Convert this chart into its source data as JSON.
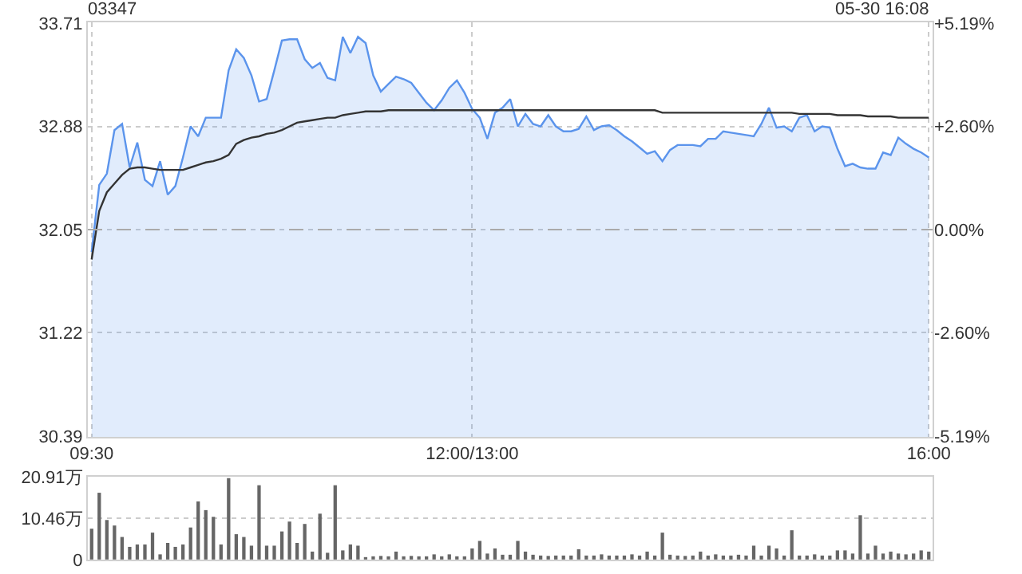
{
  "chart_data": [
    {
      "type": "line",
      "title": "03347",
      "annotations": [
        "05-30 16:08"
      ],
      "categories": [
        "09:30",
        null,
        null,
        null,
        null,
        null,
        null,
        null,
        null,
        null,
        null,
        null,
        null,
        null,
        null,
        null,
        null,
        null,
        null,
        null,
        null,
        null,
        null,
        null,
        null,
        null,
        null,
        null,
        null,
        null,
        null,
        null,
        null,
        null,
        null,
        null,
        null,
        null,
        null,
        null,
        null,
        null,
        null,
        null,
        null,
        null,
        null,
        null,
        null,
        null,
        "12:00/13:00",
        null,
        null,
        null,
        null,
        null,
        null,
        null,
        null,
        null,
        null,
        null,
        null,
        null,
        null,
        null,
        null,
        null,
        null,
        null,
        null,
        null,
        null,
        null,
        null,
        null,
        null,
        null,
        null,
        null,
        null,
        null,
        null,
        null,
        null,
        null,
        null,
        null,
        null,
        null,
        null,
        null,
        null,
        null,
        null,
        null,
        null,
        null,
        null,
        null,
        null,
        null,
        null,
        null,
        null,
        null,
        null,
        null,
        null,
        null,
        "16:00"
      ],
      "ylim": [
        30.39,
        33.71
      ],
      "yticks": [
        30.39,
        31.22,
        32.05,
        32.88,
        33.71
      ],
      "y2lim": [
        -5.19,
        5.19
      ],
      "y2ticks": [
        {
          "value": -5.19,
          "label": "-5.19%"
        },
        {
          "value": -2.6,
          "label": "-2.60%"
        },
        {
          "value": 0,
          "label": "0.00%"
        },
        {
          "value": 2.6,
          "label": "+2.60%"
        },
        {
          "value": 5.19,
          "label": "+5.19%"
        }
      ],
      "grid": true,
      "marker": "none",
      "ref_lines": [
        {
          "axis": "y",
          "value": 32.05,
          "line_style": "dashed",
          "color": "#aaaaaa"
        }
      ],
      "series": [
        {
          "type": "area",
          "color": "#5b94ec",
          "values": [
            31.87,
            32.41,
            32.5,
            32.85,
            32.9,
            32.55,
            32.75,
            32.45,
            32.4,
            32.6,
            32.33,
            32.4,
            32.63,
            32.88,
            32.8,
            32.95,
            32.95,
            32.95,
            33.33,
            33.5,
            33.43,
            33.29,
            33.08,
            33.1,
            33.33,
            33.57,
            33.58,
            33.58,
            33.42,
            33.35,
            33.39,
            33.27,
            33.25,
            33.6,
            33.47,
            33.6,
            33.55,
            33.29,
            33.16,
            33.22,
            33.28,
            33.26,
            33.23,
            33.15,
            33.07,
            33.01,
            33.09,
            33.19,
            33.25,
            33.15,
            33.02,
            32.95,
            32.78,
            32.99,
            33.03,
            33.1,
            32.88,
            32.98,
            32.9,
            32.88,
            32.97,
            32.88,
            32.84,
            32.84,
            32.86,
            32.96,
            32.85,
            32.88,
            32.89,
            32.85,
            32.8,
            32.76,
            32.71,
            32.66,
            32.68,
            32.6,
            32.69,
            32.73,
            32.73,
            32.73,
            32.72,
            32.78,
            32.78,
            32.84,
            32.83,
            32.82,
            32.81,
            32.8,
            32.9,
            33.03,
            32.87,
            32.88,
            32.84,
            32.95,
            32.97,
            32.84,
            32.88,
            32.87,
            32.7,
            32.56,
            32.58,
            32.55,
            32.54,
            32.54,
            32.67,
            32.65,
            32.79,
            32.74,
            32.7,
            32.67,
            32.63
          ]
        },
        {
          "color": "#333333",
          "values": [
            31.81,
            32.2,
            32.35,
            32.42,
            32.49,
            32.54,
            32.55,
            32.55,
            32.54,
            32.53,
            32.53,
            32.53,
            32.53,
            32.55,
            32.57,
            32.59,
            32.6,
            32.62,
            32.65,
            32.74,
            32.77,
            32.79,
            32.8,
            32.82,
            32.83,
            32.85,
            32.88,
            32.91,
            32.92,
            32.93,
            32.94,
            32.95,
            32.95,
            32.97,
            32.98,
            32.99,
            33.0,
            33.0,
            33.0,
            33.01,
            33.01,
            33.01,
            33.01,
            33.01,
            33.01,
            33.01,
            33.01,
            33.01,
            33.01,
            33.01,
            33.01,
            33.01,
            33.01,
            33.01,
            33.01,
            33.01,
            33.01,
            33.01,
            33.01,
            33.01,
            33.01,
            33.01,
            33.01,
            33.01,
            33.01,
            33.01,
            33.01,
            33.01,
            33.01,
            33.01,
            33.01,
            33.01,
            33.01,
            33.01,
            33.01,
            32.99,
            32.99,
            32.99,
            32.99,
            32.99,
            32.99,
            32.99,
            32.99,
            32.99,
            32.99,
            32.99,
            32.99,
            32.99,
            32.99,
            32.99,
            32.99,
            32.99,
            32.99,
            32.98,
            32.98,
            32.98,
            32.98,
            32.98,
            32.97,
            32.97,
            32.97,
            32.97,
            32.96,
            32.96,
            32.96,
            32.96,
            32.95,
            32.95,
            32.95,
            32.95,
            32.95
          ]
        }
      ]
    },
    {
      "type": "bar",
      "tick_labels": "y",
      "categories": [
        null,
        null,
        null,
        null,
        null,
        null,
        null,
        null,
        null,
        null,
        null,
        null,
        null,
        null,
        null,
        null,
        null,
        null,
        null,
        null,
        null,
        null,
        null,
        null,
        null,
        null,
        null,
        null,
        null,
        null,
        null,
        null,
        null,
        null,
        null,
        null,
        null,
        null,
        null,
        null,
        null,
        null,
        null,
        null,
        null,
        null,
        null,
        null,
        null,
        null,
        null,
        null,
        null,
        null,
        null,
        null,
        null,
        null,
        null,
        null,
        null,
        null,
        null,
        null,
        null,
        null,
        null,
        null,
        null,
        null,
        null,
        null,
        null,
        null,
        null,
        null,
        null,
        null,
        null,
        null,
        null,
        null,
        null,
        null,
        null,
        null,
        null,
        null,
        null,
        null,
        null,
        null,
        null,
        null,
        null,
        null,
        null,
        null,
        null,
        null,
        null,
        null,
        null,
        null,
        null,
        null,
        null,
        null,
        null,
        null,
        null
      ],
      "ylim": [
        0,
        20.91
      ],
      "yticks": [
        0,
        {
          "value": 10.46,
          "label": "10.46万"
        },
        {
          "value": 20.91,
          "label": "20.91万"
        }
      ],
      "grid": "y",
      "color": "#666666",
      "values": [
        7.8,
        16.9,
        10,
        8.6,
        5.7,
        3.2,
        3.8,
        3.8,
        6.8,
        1.3,
        4.2,
        3.2,
        3.8,
        8.1,
        14.7,
        12.5,
        10.8,
        3.8,
        20.6,
        6.4,
        5.7,
        3.5,
        18.8,
        3.5,
        3.5,
        7.1,
        9.6,
        4.2,
        9,
        2,
        11.6,
        1.7,
        18.8,
        2.3,
        3.8,
        3.5,
        0.6,
        0.8,
        0.9,
        0.8,
        2,
        0.8,
        0.9,
        0.8,
        0.8,
        1.3,
        0.8,
        1.3,
        0.8,
        0.8,
        2.8,
        4.7,
        1.5,
        2.8,
        1.2,
        1.2,
        4.7,
        2,
        1.2,
        1,
        0.9,
        1,
        1,
        1,
        2.6,
        1,
        1,
        1.3,
        1,
        1,
        1,
        1.3,
        1,
        2,
        1,
        6.8,
        1.2,
        1,
        0.9,
        1,
        2,
        1,
        1.3,
        1,
        1,
        1.2,
        1,
        3.5,
        1,
        3.5,
        2.8,
        1,
        7.4,
        1,
        1,
        1.3,
        1,
        1,
        2.3,
        2.3,
        1.5,
        11.2,
        1.5,
        3.5,
        1.5,
        2,
        1.5,
        1.3,
        1.5,
        2.3,
        2
      ]
    }
  ]
}
